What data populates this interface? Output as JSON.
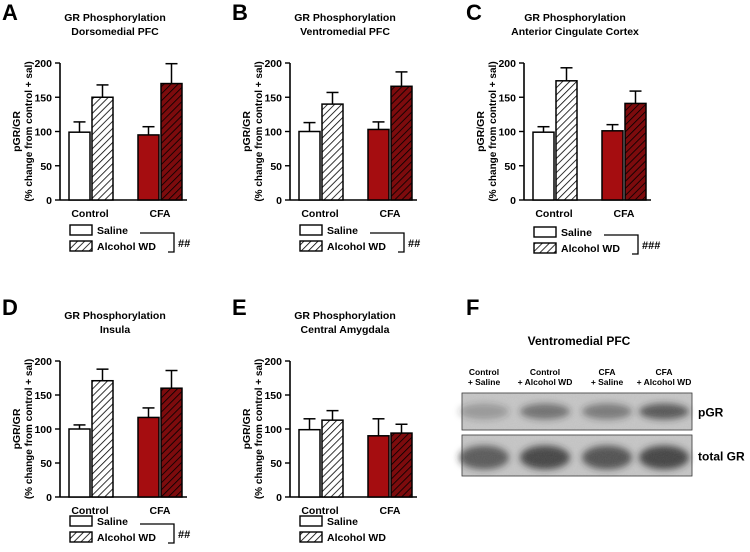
{
  "colors": {
    "saline_control": "#ffffff",
    "alcohol_control": "hatch-white",
    "saline_cfa": "#a50d10",
    "alcohol_cfa": "hatch-red",
    "hatch_red_bg": "#7d0b0d"
  },
  "chart_data": [
    {
      "panel": "A",
      "type": "bar",
      "title": "GR Phosphorylation",
      "subtitle": "Dorsomedial PFC",
      "ylabel": [
        "pGR/GR",
        "(% change from control + sal)"
      ],
      "ylim": [
        0,
        200
      ],
      "yticks": [
        "0",
        "50",
        "100",
        "150",
        "200"
      ],
      "categories": [
        "Control",
        "CFA"
      ],
      "series": [
        {
          "name": "Saline",
          "values": [
            99,
            95
          ],
          "errors": [
            15,
            12
          ]
        },
        {
          "name": "Alcohol WD",
          "values": [
            150,
            170
          ],
          "errors": [
            18,
            29
          ]
        }
      ],
      "legend": [
        "Saline",
        "Alcohol WD"
      ],
      "significance": "##"
    },
    {
      "panel": "B",
      "type": "bar",
      "title": "GR Phosphorylation",
      "subtitle": "Ventromedial PFC",
      "ylabel": [
        "pGR/GR",
        "(% change from control + sal)"
      ],
      "ylim": [
        0,
        200
      ],
      "yticks": [
        "0",
        "50",
        "100",
        "150",
        "200"
      ],
      "categories": [
        "Control",
        "CFA"
      ],
      "series": [
        {
          "name": "Saline",
          "values": [
            100,
            103
          ],
          "errors": [
            13,
            11
          ]
        },
        {
          "name": "Alcohol WD",
          "values": [
            140,
            166
          ],
          "errors": [
            17,
            21
          ]
        }
      ],
      "legend": [
        "Saline",
        "Alcohol WD"
      ],
      "significance": "##"
    },
    {
      "panel": "C",
      "type": "bar",
      "title": "GR Phosphorylation",
      "subtitle": "Anterior Cingulate Cortex",
      "ylabel": [
        "pGR/GR",
        "(% change from control + sal)"
      ],
      "ylim": [
        0,
        200
      ],
      "yticks": [
        "0",
        "50",
        "100",
        "150",
        "200"
      ],
      "categories": [
        "Control",
        "CFA"
      ],
      "series": [
        {
          "name": "Saline",
          "values": [
            99,
            101
          ],
          "errors": [
            8,
            9
          ]
        },
        {
          "name": "Alcohol WD",
          "values": [
            174,
            141
          ],
          "errors": [
            19,
            18
          ]
        }
      ],
      "legend": [
        "Saline",
        "Alcohol WD"
      ],
      "significance": "###"
    },
    {
      "panel": "D",
      "type": "bar",
      "title": "GR Phosphorylation",
      "subtitle": "Insula",
      "ylabel": [
        "pGR/GR",
        "(% change from control + sal)"
      ],
      "ylim": [
        0,
        200
      ],
      "yticks": [
        "0",
        "50",
        "100",
        "150",
        "200"
      ],
      "categories": [
        "Control",
        "CFA"
      ],
      "series": [
        {
          "name": "Saline",
          "values": [
            100,
            117
          ],
          "errors": [
            6,
            14
          ]
        },
        {
          "name": "Alcohol WD",
          "values": [
            171,
            160
          ],
          "errors": [
            17,
            26
          ]
        }
      ],
      "legend": [
        "Saline",
        "Alcohol WD"
      ],
      "significance": "##"
    },
    {
      "panel": "E",
      "type": "bar",
      "title": "GR Phosphorylation",
      "subtitle": "Central Amygdala",
      "ylabel": [
        "pGR/GR",
        "(% change from control + sal)"
      ],
      "ylim": [
        0,
        200
      ],
      "yticks": [
        "0",
        "50",
        "100",
        "150",
        "200"
      ],
      "categories": [
        "Control",
        "CFA"
      ],
      "series": [
        {
          "name": "Saline",
          "values": [
            99,
            90
          ],
          "errors": [
            16,
            25
          ]
        },
        {
          "name": "Alcohol WD",
          "values": [
            113,
            94
          ],
          "errors": [
            14,
            13
          ]
        }
      ],
      "legend": [
        "Saline",
        "Alcohol WD"
      ],
      "significance": ""
    }
  ],
  "blot": {
    "panel": "F",
    "title": "Ventromedial PFC",
    "lanes": [
      [
        "Control",
        "+ Saline"
      ],
      [
        "Control",
        "+ Alcohol WD"
      ],
      [
        "CFA",
        "+ Saline"
      ],
      [
        "CFA",
        "+ Alcohol WD"
      ]
    ],
    "rows": [
      "pGR",
      "total GR"
    ]
  }
}
